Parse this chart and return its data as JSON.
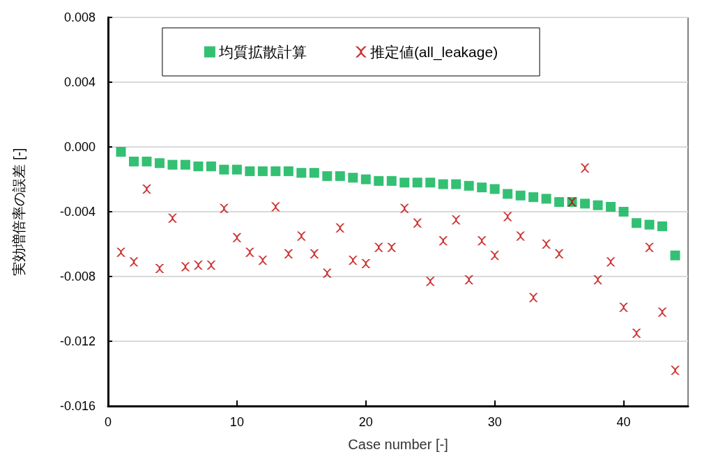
{
  "chart_data": {
    "type": "scatter",
    "xlabel": "Case number [-]",
    "ylabel": "実効増倍率の誤差 [-]",
    "x": [
      1,
      2,
      3,
      4,
      5,
      6,
      7,
      8,
      9,
      10,
      11,
      12,
      13,
      14,
      15,
      16,
      17,
      18,
      19,
      20,
      21,
      22,
      23,
      24,
      25,
      26,
      27,
      28,
      29,
      30,
      31,
      32,
      33,
      34,
      35,
      36,
      37,
      38,
      39,
      40,
      41,
      42,
      43,
      44
    ],
    "series": [
      {
        "name": "均質拡散計算",
        "color": "#00b050",
        "marker": "square",
        "values": [
          -0.0003,
          -0.0009,
          -0.0009,
          -0.001,
          -0.0011,
          -0.0011,
          -0.0012,
          -0.0012,
          -0.0014,
          -0.0014,
          -0.0015,
          -0.0015,
          -0.0015,
          -0.0015,
          -0.0016,
          -0.0016,
          -0.0018,
          -0.0018,
          -0.0019,
          -0.002,
          -0.0021,
          -0.0021,
          -0.0022,
          -0.0022,
          -0.0022,
          -0.0023,
          -0.0023,
          -0.0024,
          -0.0025,
          -0.0026,
          -0.0029,
          -0.003,
          -0.0031,
          -0.0032,
          -0.0034,
          -0.0034,
          -0.0035,
          -0.0036,
          -0.0037,
          -0.004,
          -0.0047,
          -0.0048,
          -0.0049,
          -0.0067
        ]
      },
      {
        "name": "推定値(all_leakage)",
        "color": "#c00000",
        "marker": "cross",
        "values": [
          -0.0065,
          -0.0071,
          -0.0026,
          -0.0075,
          -0.0044,
          -0.0074,
          -0.0073,
          -0.0073,
          -0.0038,
          -0.0056,
          -0.0065,
          -0.007,
          -0.0037,
          -0.0066,
          -0.0055,
          -0.0066,
          -0.0078,
          -0.005,
          -0.007,
          -0.0072,
          -0.0062,
          -0.0062,
          -0.0038,
          -0.0047,
          -0.0083,
          -0.0058,
          -0.0045,
          -0.0082,
          -0.0058,
          -0.0067,
          -0.0043,
          -0.0055,
          -0.0093,
          -0.006,
          -0.0066,
          -0.0034,
          -0.0013,
          -0.0082,
          -0.0071,
          -0.0099,
          -0.0115,
          -0.0062,
          -0.0102,
          -0.0138
        ]
      }
    ],
    "xlim": [
      0,
      45
    ],
    "xticks": [
      0,
      10,
      20,
      30,
      40
    ],
    "ylim": [
      -0.016,
      0.008
    ],
    "yticks": [
      -0.016,
      -0.012,
      -0.008,
      -0.004,
      {
        "value": 0,
        "label": "0.000"
      },
      0.004,
      0.008
    ],
    "grid": "y",
    "legend": "top"
  }
}
